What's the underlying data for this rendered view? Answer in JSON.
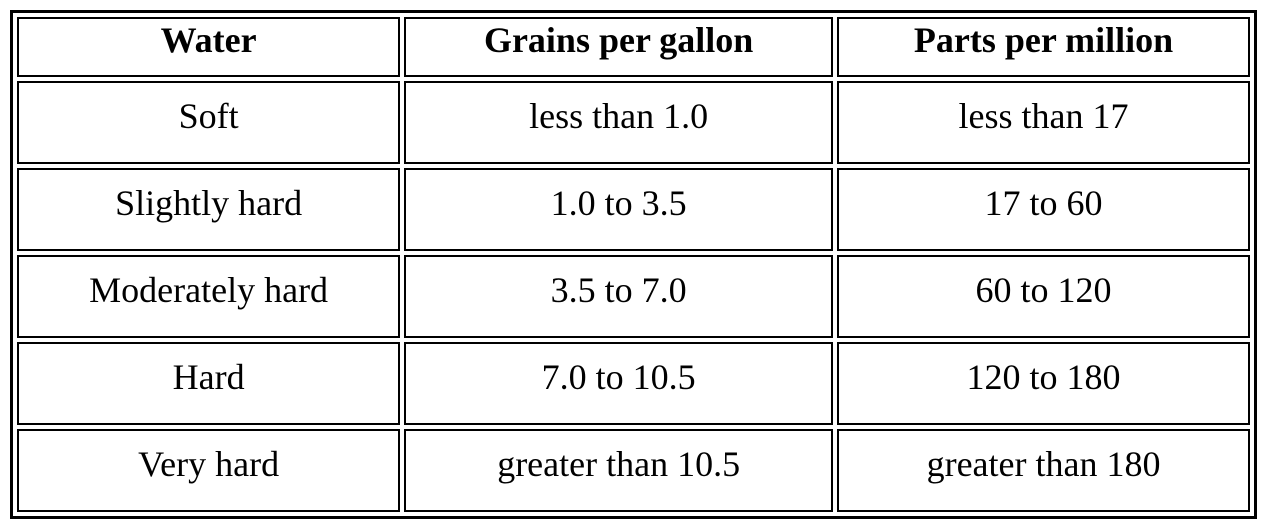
{
  "table": {
    "headers": [
      "Water",
      "Grains per gallon",
      "Parts per million"
    ],
    "rows": [
      [
        "Soft",
        "less than 1.0",
        "less than 17"
      ],
      [
        "Slightly hard",
        "1.0 to 3.5",
        "17 to 60"
      ],
      [
        "Moderately hard",
        "3.5 to 7.0",
        "60 to 120"
      ],
      [
        "Hard",
        "7.0 to 10.5",
        "120 to 180"
      ],
      [
        "Very hard",
        "greater than 10.5",
        "greater than 180"
      ]
    ]
  }
}
